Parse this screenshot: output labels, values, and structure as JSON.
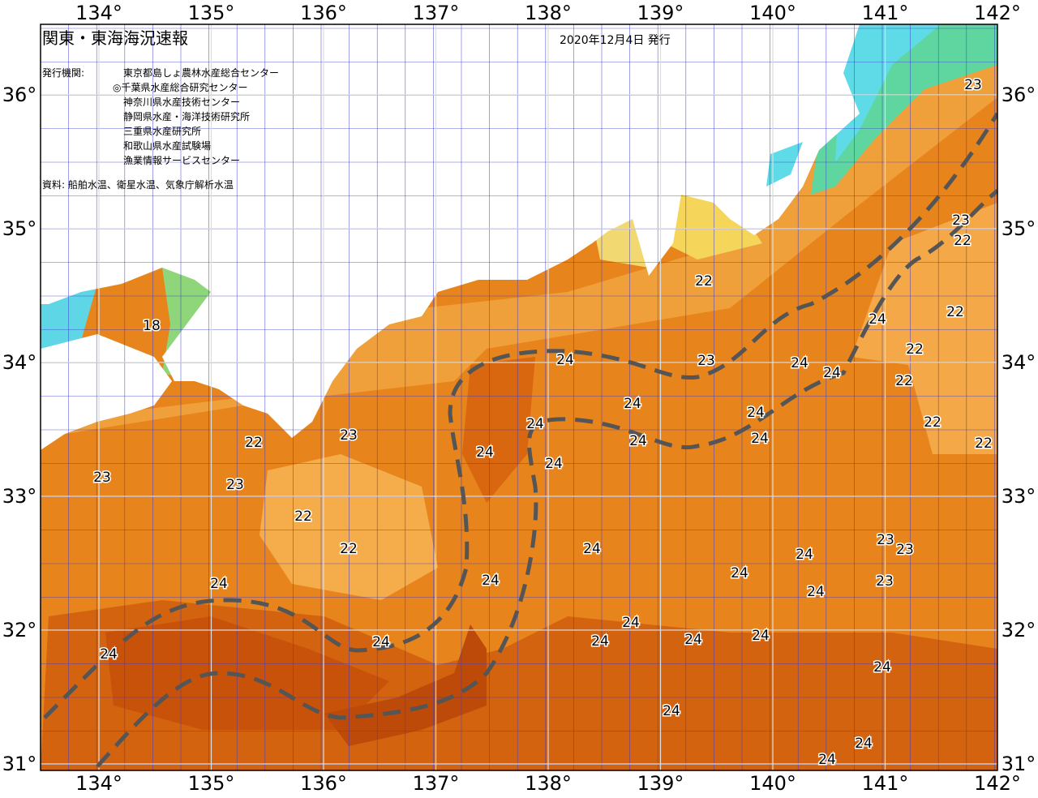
{
  "header": {
    "title": "関東・東海海況速報",
    "date": "2020年12月4日 発行",
    "issuer_label": "発行機関:",
    "issuers": [
      "東京都島しょ農林水産総合センター",
      "◎千葉県水産総合研究センター",
      "神奈川県水産技術センター",
      "静岡県水産・海洋技術研究所",
      "三重県水産研究所",
      "和歌山県水産試験場",
      "漁業情報サービスセンター"
    ],
    "source": "資料: 船舶水温、衛星水温、気象庁解析水温"
  },
  "axes": {
    "longitudes": [
      "134°",
      "135°",
      "136°",
      "137°",
      "138°",
      "139°",
      "140°",
      "141°",
      "142°"
    ],
    "latitudes": [
      "36°",
      "35°",
      "34°",
      "33°",
      "32°",
      "31°"
    ]
  },
  "contour_labels": [
    "24",
    "24",
    "24",
    "24",
    "24",
    "24",
    "23",
    "22",
    "23",
    "23",
    "22",
    "22",
    "24",
    "24",
    "24",
    "24",
    "24",
    "24",
    "24",
    "24",
    "24",
    "24",
    "24",
    "24",
    "23",
    "23",
    "23",
    "24",
    "24",
    "24",
    "24",
    "22",
    "23",
    "24",
    "24",
    "24",
    "24",
    "24",
    "22",
    "22",
    "22",
    "22",
    "22",
    "23",
    "22",
    "23",
    "18"
  ]
}
